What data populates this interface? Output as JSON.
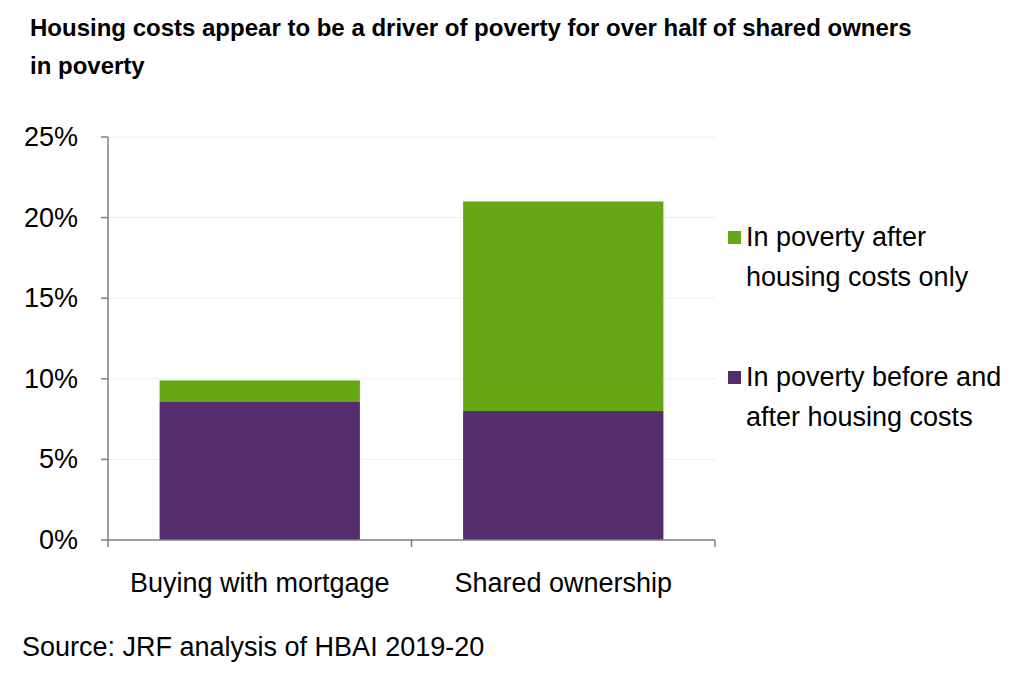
{
  "chart_data": {
    "type": "bar",
    "stacked": true,
    "title": "Housing costs appear to be a driver of poverty for over half of shared owners in poverty",
    "source": "Source: JRF analysis of HBAI 2019-20",
    "categories": [
      "Buying with mortgage",
      "Shared ownership"
    ],
    "series": [
      {
        "name": "In poverty before and after housing costs",
        "color": "#532d6d",
        "values": [
          8.6,
          8.0
        ]
      },
      {
        "name": "In poverty after housing costs only",
        "color": "#66a814",
        "values": [
          1.3,
          13.0
        ]
      }
    ],
    "ylim": [
      0,
      25
    ],
    "yticks": [
      {
        "value": 0,
        "label": "0%"
      },
      {
        "value": 5,
        "label": "5%"
      },
      {
        "value": 10,
        "label": "10%"
      },
      {
        "value": 15,
        "label": "15%"
      },
      {
        "value": 20,
        "label": "20%"
      },
      {
        "value": 25,
        "label": "25%"
      }
    ],
    "grid": true,
    "legend": "right"
  }
}
